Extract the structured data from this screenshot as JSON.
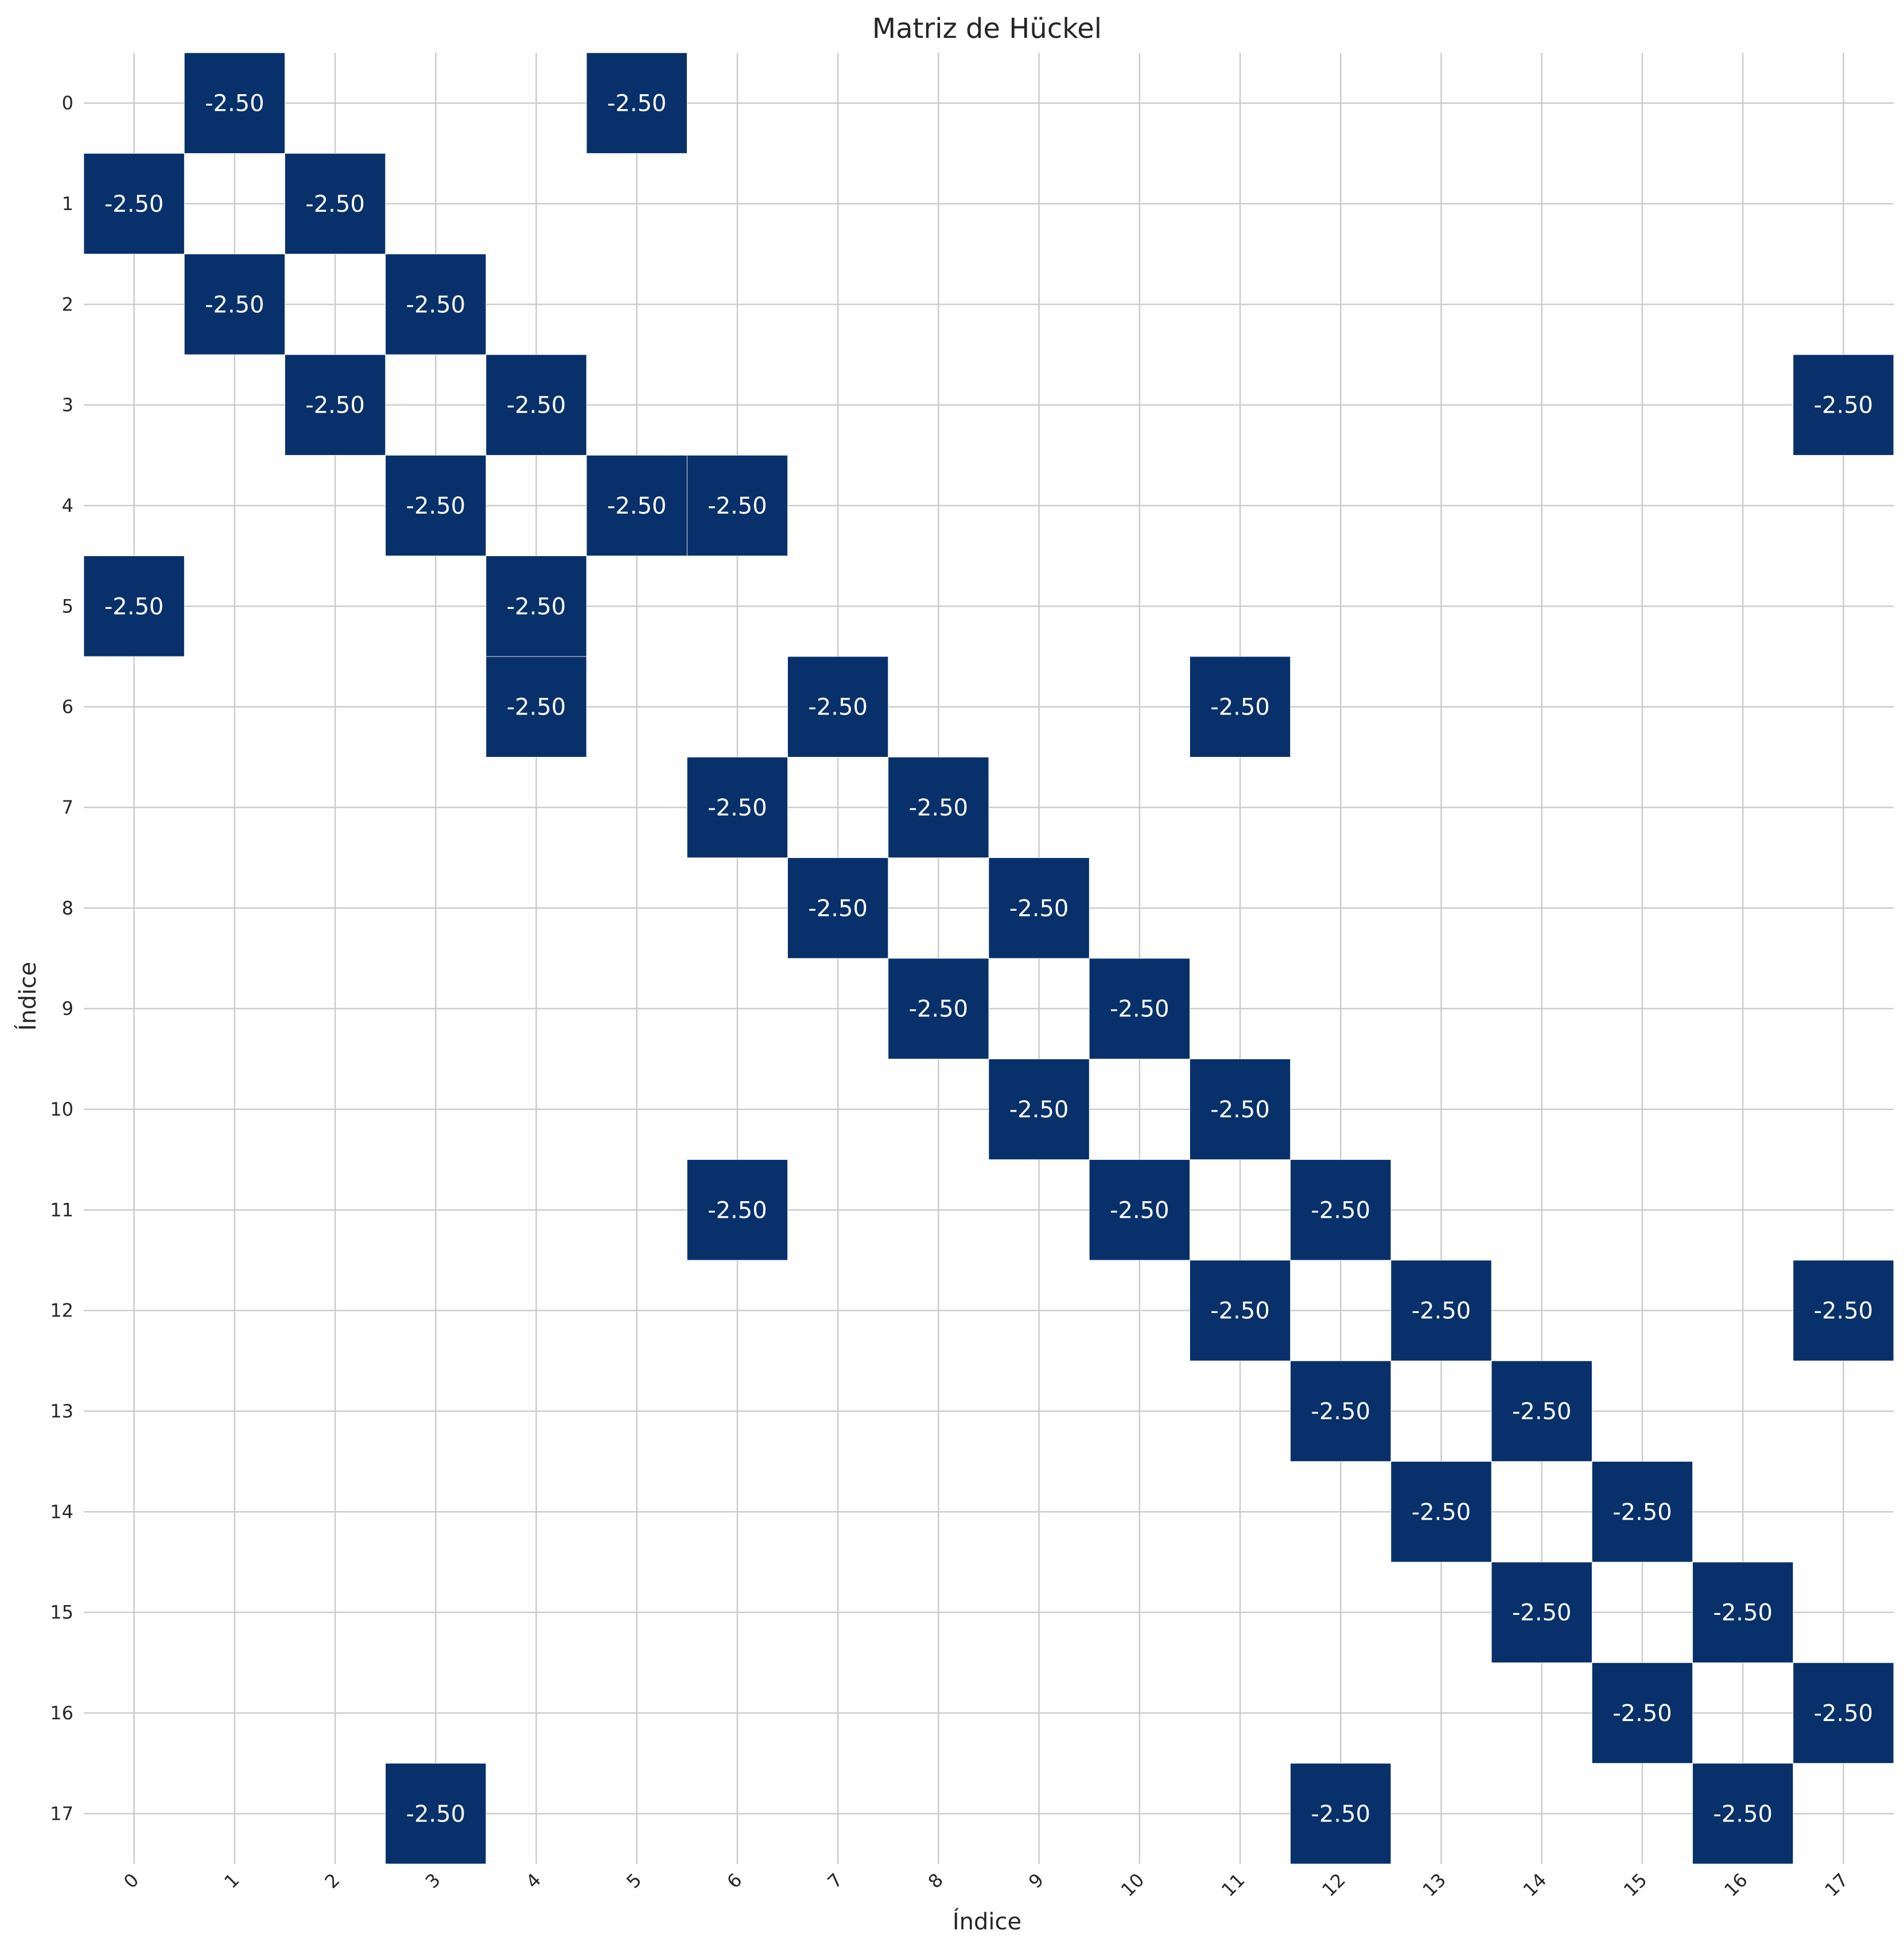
{
  "chart_data": {
    "type": "heatmap",
    "title": "Matriz de Hückel",
    "xlabel": "Índice",
    "ylabel": "Índice",
    "x_ticks": [
      "0",
      "1",
      "2",
      "3",
      "4",
      "5",
      "6",
      "7",
      "8",
      "9",
      "10",
      "11",
      "12",
      "13",
      "14",
      "15",
      "16",
      "17"
    ],
    "y_ticks": [
      "0",
      "1",
      "2",
      "3",
      "4",
      "5",
      "6",
      "7",
      "8",
      "9",
      "10",
      "11",
      "12",
      "13",
      "14",
      "15",
      "16",
      "17"
    ],
    "grid": true,
    "cell_color": "#08306b",
    "background_color": "#ffffff",
    "value_format": "-2.50",
    "empty_value": 0,
    "cells": [
      {
        "row": 0,
        "col": 1,
        "value": -2.5,
        "label": "-2.50"
      },
      {
        "row": 0,
        "col": 5,
        "value": -2.5,
        "label": "-2.50"
      },
      {
        "row": 1,
        "col": 0,
        "value": -2.5,
        "label": "-2.50"
      },
      {
        "row": 1,
        "col": 2,
        "value": -2.5,
        "label": "-2.50"
      },
      {
        "row": 2,
        "col": 1,
        "value": -2.5,
        "label": "-2.50"
      },
      {
        "row": 2,
        "col": 3,
        "value": -2.5,
        "label": "-2.50"
      },
      {
        "row": 3,
        "col": 2,
        "value": -2.5,
        "label": "-2.50"
      },
      {
        "row": 3,
        "col": 4,
        "value": -2.5,
        "label": "-2.50"
      },
      {
        "row": 3,
        "col": 17,
        "value": -2.5,
        "label": "-2.50"
      },
      {
        "row": 4,
        "col": 3,
        "value": -2.5,
        "label": "-2.50"
      },
      {
        "row": 4,
        "col": 5,
        "value": -2.5,
        "label": "-2.50"
      },
      {
        "row": 4,
        "col": 6,
        "value": -2.5,
        "label": "-2.50"
      },
      {
        "row": 5,
        "col": 0,
        "value": -2.5,
        "label": "-2.50"
      },
      {
        "row": 5,
        "col": 4,
        "value": -2.5,
        "label": "-2.50"
      },
      {
        "row": 6,
        "col": 4,
        "value": -2.5,
        "label": "-2.50"
      },
      {
        "row": 6,
        "col": 7,
        "value": -2.5,
        "label": "-2.50"
      },
      {
        "row": 6,
        "col": 11,
        "value": -2.5,
        "label": "-2.50"
      },
      {
        "row": 7,
        "col": 6,
        "value": -2.5,
        "label": "-2.50"
      },
      {
        "row": 7,
        "col": 8,
        "value": -2.5,
        "label": "-2.50"
      },
      {
        "row": 8,
        "col": 7,
        "value": -2.5,
        "label": "-2.50"
      },
      {
        "row": 8,
        "col": 9,
        "value": -2.5,
        "label": "-2.50"
      },
      {
        "row": 9,
        "col": 8,
        "value": -2.5,
        "label": "-2.50"
      },
      {
        "row": 9,
        "col": 10,
        "value": -2.5,
        "label": "-2.50"
      },
      {
        "row": 10,
        "col": 9,
        "value": -2.5,
        "label": "-2.50"
      },
      {
        "row": 10,
        "col": 11,
        "value": -2.5,
        "label": "-2.50"
      },
      {
        "row": 11,
        "col": 6,
        "value": -2.5,
        "label": "-2.50"
      },
      {
        "row": 11,
        "col": 10,
        "value": -2.5,
        "label": "-2.50"
      },
      {
        "row": 11,
        "col": 12,
        "value": -2.5,
        "label": "-2.50"
      },
      {
        "row": 12,
        "col": 11,
        "value": -2.5,
        "label": "-2.50"
      },
      {
        "row": 12,
        "col": 13,
        "value": -2.5,
        "label": "-2.50"
      },
      {
        "row": 12,
        "col": 17,
        "value": -2.5,
        "label": "-2.50"
      },
      {
        "row": 13,
        "col": 12,
        "value": -2.5,
        "label": "-2.50"
      },
      {
        "row": 13,
        "col": 14,
        "value": -2.5,
        "label": "-2.50"
      },
      {
        "row": 14,
        "col": 13,
        "value": -2.5,
        "label": "-2.50"
      },
      {
        "row": 14,
        "col": 15,
        "value": -2.5,
        "label": "-2.50"
      },
      {
        "row": 15,
        "col": 14,
        "value": -2.5,
        "label": "-2.50"
      },
      {
        "row": 15,
        "col": 16,
        "value": -2.5,
        "label": "-2.50"
      },
      {
        "row": 16,
        "col": 15,
        "value": -2.5,
        "label": "-2.50"
      },
      {
        "row": 16,
        "col": 17,
        "value": -2.5,
        "label": "-2.50"
      },
      {
        "row": 17,
        "col": 3,
        "value": -2.5,
        "label": "-2.50"
      },
      {
        "row": 17,
        "col": 12,
        "value": -2.5,
        "label": "-2.50"
      },
      {
        "row": 17,
        "col": 16,
        "value": -2.5,
        "label": "-2.50"
      }
    ]
  }
}
